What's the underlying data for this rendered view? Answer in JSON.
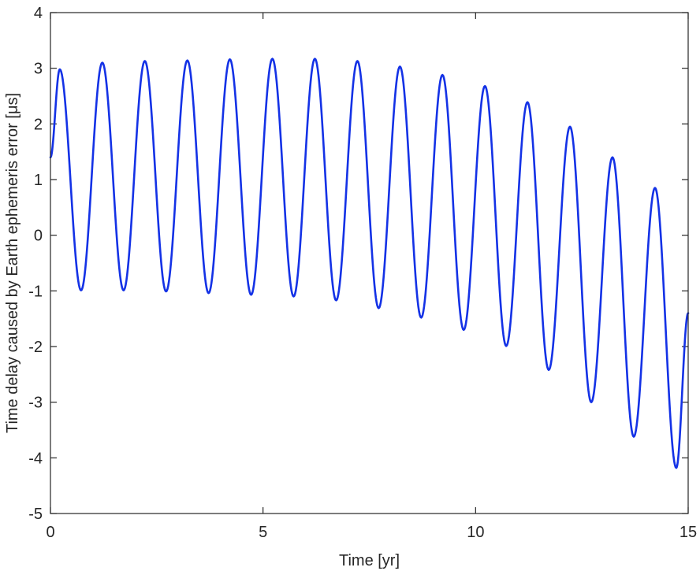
{
  "chart_data": {
    "type": "line",
    "xlabel": "Time [yr]",
    "ylabel": "Time delay caused by Earth ephemeris error [μs]",
    "xlim": [
      0,
      15
    ],
    "ylim": [
      -5,
      4
    ],
    "x_ticks": [
      "0",
      "5",
      "10",
      "15"
    ],
    "y_ticks": [
      "-5",
      "-4",
      "-3",
      "-2",
      "-1",
      "0",
      "1",
      "2",
      "3",
      "4"
    ],
    "grid": false,
    "series": [
      {
        "color": "#1432e6",
        "peaks": [
          {
            "x": 0.22,
            "y": 2.98
          },
          {
            "x": 1.22,
            "y": 3.1
          },
          {
            "x": 2.22,
            "y": 3.13
          },
          {
            "x": 3.22,
            "y": 3.14
          },
          {
            "x": 4.22,
            "y": 3.16
          },
          {
            "x": 5.22,
            "y": 3.17
          },
          {
            "x": 6.22,
            "y": 3.17
          },
          {
            "x": 7.22,
            "y": 3.13
          },
          {
            "x": 8.22,
            "y": 3.03
          },
          {
            "x": 9.22,
            "y": 2.88
          },
          {
            "x": 10.22,
            "y": 2.68
          },
          {
            "x": 11.22,
            "y": 2.39
          },
          {
            "x": 12.22,
            "y": 1.95
          },
          {
            "x": 13.22,
            "y": 1.4
          },
          {
            "x": 14.22,
            "y": 0.85
          }
        ],
        "troughs": [
          {
            "x": 0.72,
            "y": -0.99
          },
          {
            "x": 1.72,
            "y": -0.99
          },
          {
            "x": 2.72,
            "y": -1.01
          },
          {
            "x": 3.72,
            "y": -1.04
          },
          {
            "x": 4.72,
            "y": -1.07
          },
          {
            "x": 5.72,
            "y": -1.1
          },
          {
            "x": 6.72,
            "y": -1.17
          },
          {
            "x": 7.72,
            "y": -1.31
          },
          {
            "x": 8.72,
            "y": -1.48
          },
          {
            "x": 9.72,
            "y": -1.7
          },
          {
            "x": 10.72,
            "y": -1.99
          },
          {
            "x": 11.72,
            "y": -2.42
          },
          {
            "x": 12.72,
            "y": -3.0
          },
          {
            "x": 13.72,
            "y": -3.62
          },
          {
            "x": 14.72,
            "y": -4.18
          }
        ],
        "start": {
          "x": 0.0,
          "y": 1.4
        },
        "end": {
          "x": 15.0,
          "y": -1.4
        }
      }
    ]
  }
}
